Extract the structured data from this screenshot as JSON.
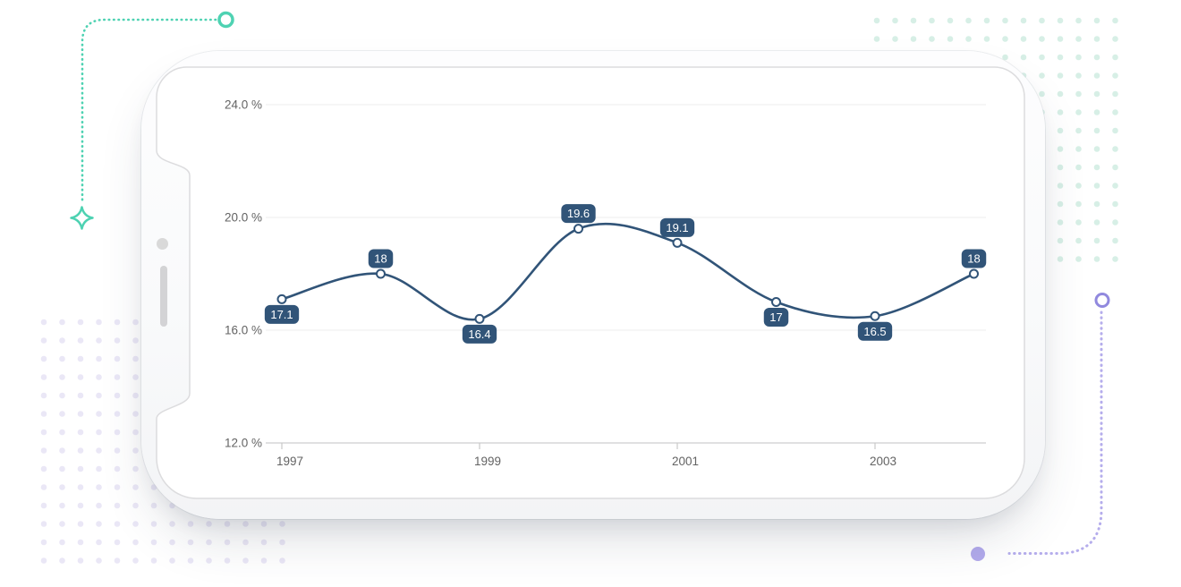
{
  "device": {
    "label": "smartphone landscape mockup"
  },
  "decor": {
    "teal": "#4ed2b2",
    "purple_ring": "#9189de",
    "purple_dotted": "#b5adec",
    "purple_dot_fill": "#b2aaec",
    "mint_dot": "#d7efe6",
    "lavender_dot": "#eae7f6"
  },
  "chart_data": {
    "type": "line",
    "line_style": "spline",
    "title": "",
    "xlabel": "",
    "ylabel": "",
    "legend": "none",
    "grid": "horizontal-only",
    "x": [
      1997,
      1998,
      1999,
      2000,
      2001,
      2002,
      2003,
      2004
    ],
    "series": [
      {
        "name": "percentage",
        "values": [
          17.1,
          18,
          16.4,
          19.6,
          19.1,
          17,
          16.5,
          18
        ]
      }
    ],
    "data_labels": [
      "17.1",
      "18",
      "16.4",
      "19.6",
      "19.1",
      "17",
      "16.5",
      "18"
    ],
    "data_label_side": [
      "below",
      "above",
      "below",
      "above",
      "above",
      "below",
      "below",
      "above"
    ],
    "x_tick_years": [
      1997,
      1999,
      2001,
      2003
    ],
    "x_tick_labels": [
      "1997",
      "1999",
      "2001",
      "2003"
    ],
    "y_ticks": [
      24,
      20,
      16,
      12
    ],
    "y_tick_labels": [
      "24.0 %",
      "20.0 %",
      "16.0 %",
      "12.0 %"
    ],
    "ylim": [
      12,
      24
    ],
    "colors": {
      "line": "#315478",
      "marker_fill": "#ffffff",
      "marker_stroke": "#315478",
      "label_bg": "#315478",
      "label_text": "#ffffff",
      "axis_text": "#636363",
      "gridline": "#ededee",
      "axis_line": "#d5d5d7",
      "tick": "#c9c9c9"
    }
  }
}
